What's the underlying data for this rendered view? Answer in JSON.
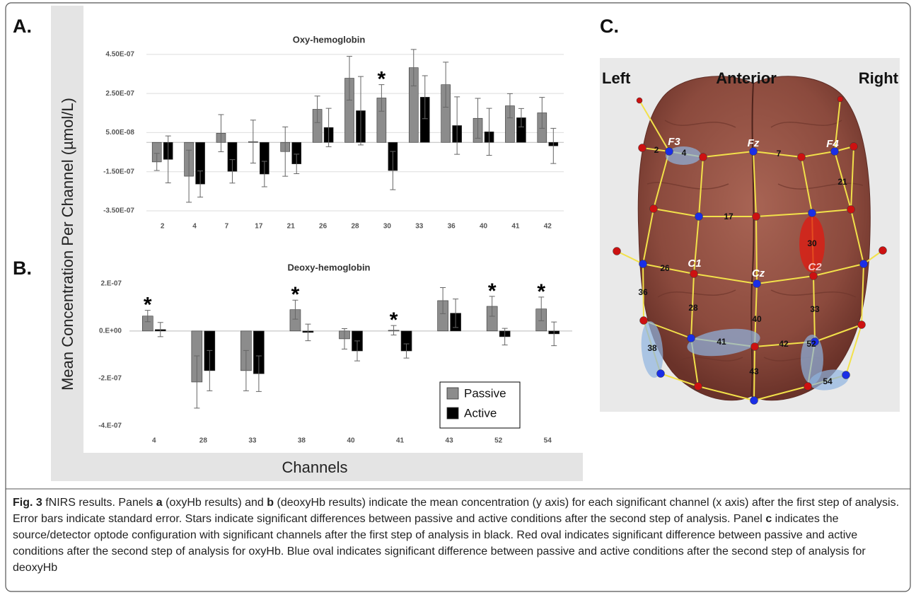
{
  "panel_labels": [
    "A.",
    "B.",
    "C."
  ],
  "shared_axes": {
    "ylabel": "Mean Concentration Per Channel (µmol/L)",
    "xlabel": "Channels"
  },
  "chart_data": [
    {
      "type": "bar",
      "title": "Oxy-hemoglobin",
      "categories": [
        2,
        4,
        7,
        17,
        21,
        26,
        28,
        30,
        33,
        36,
        40,
        41,
        42
      ],
      "series": [
        {
          "color": "#8c8c8c",
          "values": [
            -1e-07,
            -1.73e-07,
            4.7e-08,
            4e-09,
            -4.7e-08,
            1.69e-07,
            3.28e-07,
            2.27e-07,
            3.82e-07,
            2.95e-07,
            1.23e-07,
            1.87e-07,
            1.51e-07
          ],
          "errors": [
            4.4e-08,
            1.33e-07,
            9.5e-08,
            1.1e-07,
            1.26e-07,
            6.8e-08,
            1.12e-07,
            6.8e-08,
            9.3e-08,
            1.15e-07,
            1.02e-07,
            6.2e-08,
            7.9e-08
          ]
        },
        {
          "color": "#000000",
          "values": [
            -8.7e-08,
            -2.13e-07,
            -1.48e-07,
            -1.62e-07,
            -1.1e-07,
            7.6e-08,
            1.62e-07,
            -1.44e-07,
            2.31e-07,
            8.6e-08,
            5.4e-08,
            1.26e-07,
            -1.8e-08
          ],
          "errors": [
            1.2e-07,
            6.7e-08,
            6e-08,
            6.5e-08,
            5e-08,
            9.8e-08,
            1.75e-07,
            9.8e-08,
            1.1e-07,
            1.47e-07,
            1.2e-07,
            4.7e-08,
            9e-08
          ]
        }
      ],
      "markers": [
        null,
        null,
        null,
        null,
        null,
        null,
        null,
        "*",
        null,
        null,
        null,
        null,
        null
      ],
      "ylim": [
        -3.5e-07,
        5e-07
      ],
      "yticks": [
        {
          "value": 4.5e-07,
          "label": "4.50E-07"
        },
        {
          "value": 2.5e-07,
          "label": "2.50E-07"
        },
        {
          "value": 5e-08,
          "label": "5.00E-08"
        },
        {
          "value": -1.5e-07,
          "label": "-1.50E-07"
        },
        {
          "value": -3.5e-07,
          "label": "-3.50E-07"
        }
      ],
      "grid": true
    },
    {
      "type": "bar",
      "title": "Deoxy-hemoglobin",
      "categories": [
        4,
        28,
        33,
        38,
        40,
        41,
        43,
        52,
        54
      ],
      "series": [
        {
          "name": "Passive",
          "color": "#8c8c8c",
          "values": [
            6.3e-08,
            -2.15e-07,
            -1.67e-07,
            9e-08,
            -3.3e-08,
            3e-09,
            1.28e-07,
            1.04e-07,
            9.3e-08
          ],
          "errors": [
            2.4e-08,
            1.1e-07,
            8.5e-08,
            4e-08,
            4.3e-08,
            2e-08,
            5.5e-08,
            4.2e-08,
            5e-08
          ]
        },
        {
          "name": "Active",
          "color": "#000000",
          "values": [
            6e-09,
            -1.67e-07,
            -1.8e-07,
            -6e-09,
            -8.4e-08,
            -8.4e-08,
            7.5e-08,
            -2.4e-08,
            -1.2e-08
          ],
          "errors": [
            3e-08,
            8.5e-08,
            7.5e-08,
            3.5e-08,
            4.2e-08,
            3e-08,
            6e-08,
            3.5e-08,
            5e-08
          ]
        }
      ],
      "markers": [
        "*",
        null,
        null,
        "*",
        null,
        "*",
        null,
        "*",
        "*"
      ],
      "ylim": [
        -4e-07,
        2.5e-07
      ],
      "yticks": [
        {
          "value": 2e-07,
          "label": "2.E-07"
        },
        {
          "value": 0,
          "label": "0.E+00"
        },
        {
          "value": -2e-07,
          "label": "-2.E-07"
        },
        {
          "value": -4e-07,
          "label": "-4.E-07"
        }
      ],
      "grid": false,
      "legend": "lower right"
    }
  ],
  "diagram": {
    "directions": [
      "Left",
      "Anterior",
      "Right"
    ],
    "electrodes": [
      "F3",
      "Fz",
      "F4",
      "C1",
      "Cz",
      "C2"
    ],
    "channels": [
      2,
      4,
      7,
      21,
      17,
      30,
      26,
      36,
      28,
      40,
      33,
      41,
      42,
      38,
      52,
      43,
      54
    ]
  },
  "caption": [
    "Fig. 3",
    "fNIRS results. Panels",
    "a",
    "(oxyHb results) and",
    "b",
    "(deoxyHb results) indicate the mean concentration (y axis) for each significant channel (x axis) after the first step of analysis. Error bars indicate standard error. Stars indicate significant differences between passive and active conditions after the second step of analysis. Panel",
    "c",
    "indicates the source/detector optode configuration with significant channels after the first step of analysis in black. Red oval indicates significant difference between passive and active conditions after the second step of analysis for oxyHb. Blue oval indicates significant difference between passive and active conditions after the second step of analysis for deoxyHb"
  ]
}
